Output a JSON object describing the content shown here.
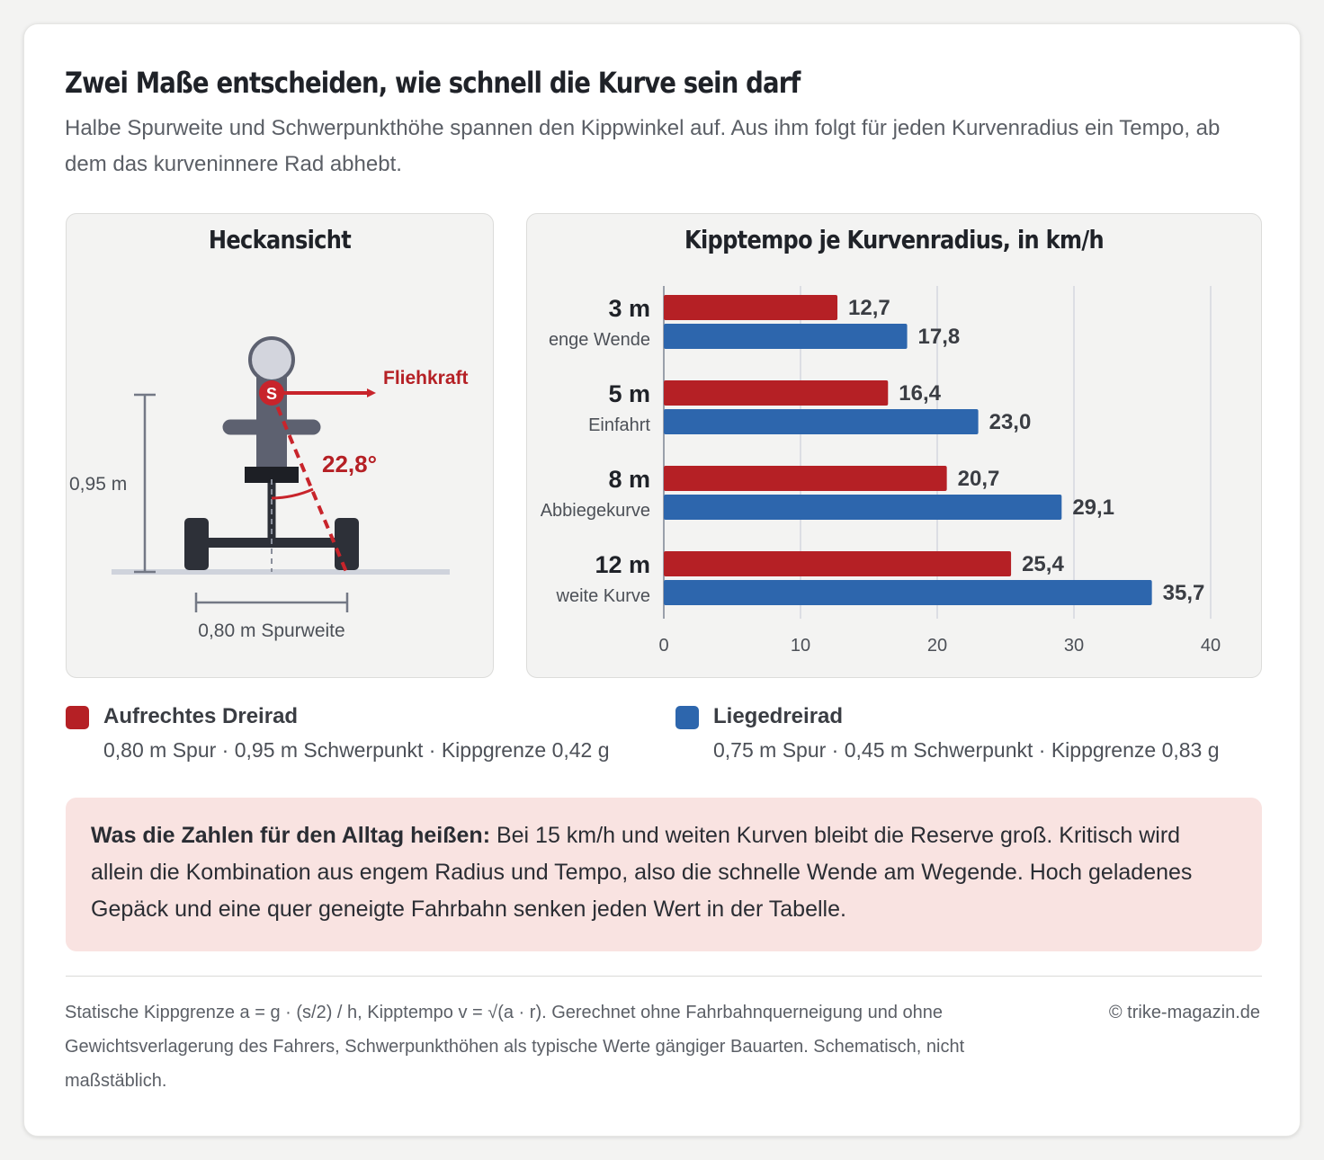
{
  "header": {
    "title": "Zwei Maße entscheiden, wie schnell die Kurve sein darf",
    "subtitle": "Halbe Spurweite und Schwerpunkthöhe spannen den Kippwinkel auf. Aus ihm folgt für jeden Kurvenradius ein Tempo, ab dem das kurveninnere Rad abhebt."
  },
  "diagram": {
    "title": "Heckansicht",
    "force_label": "Fliehkraft",
    "cg_marker": "S",
    "angle_label": "22,8°",
    "height_label": "0,95 m",
    "track_label": "0,80 m Spurweite"
  },
  "colors": {
    "upright": "#b52025",
    "recumbent": "#2d66ad",
    "rider": "#5d6170",
    "head": "#d3d5dd",
    "wheel": "#2d3038",
    "ground": "#cfd3dc",
    "dimension": "#737885"
  },
  "chart_data": {
    "type": "bar",
    "orientation": "horizontal",
    "title": "Kipptempo je Kurvenradius, in km/h",
    "categories": [
      "3 m",
      "5 m",
      "8 m",
      "12 m"
    ],
    "category_sublabels": [
      "enge Wende",
      "Einfahrt",
      "Abbiegekurve",
      "weite Kurve"
    ],
    "series": [
      {
        "name": "Aufrechtes Dreirad",
        "values": [
          12.7,
          16.4,
          20.7,
          25.4
        ],
        "labels": [
          "12,7",
          "16,4",
          "20,7",
          "25,4"
        ]
      },
      {
        "name": "Liegedreirad",
        "values": [
          17.8,
          23.0,
          29.1,
          35.7
        ],
        "labels": [
          "17,8",
          "23,0",
          "29,1",
          "35,7"
        ]
      }
    ],
    "xlim": [
      0,
      40
    ],
    "xticks": [
      0,
      10,
      20,
      30,
      40
    ],
    "grid": true
  },
  "legend": [
    {
      "name": "Aufrechtes Dreirad",
      "desc": "0,80 m Spur · 0,95 m Schwerpunkt · Kippgrenze 0,42 g"
    },
    {
      "name": "Liegedreirad",
      "desc": "0,75 m Spur · 0,45 m Schwerpunkt · Kippgrenze 0,83 g"
    }
  ],
  "note": {
    "lead": "Was die Zahlen für den Alltag heißen:",
    "text": " Bei 15 km/h und weiten Kurven bleibt die Reserve groß. Kritisch wird allein die Kombination aus engem Radius und Tempo, also die schnelle Wende am Wegende. Hoch geladenes Gepäck und eine quer geneigte Fahrbahn senken jeden Wert in der Tabelle."
  },
  "footer": {
    "footnote": "Statische Kippgrenze a = g · (s/2) / h, Kipptempo v = √(a · r). Gerechnet ohne Fahrbahnquerneigung und ohne Gewichtsverlagerung des Fahrers, Schwerpunkthöhen als typische Werte gängiger Bauarten. Schematisch, nicht maßstäblich.",
    "copyright": "© trike-magazin.de"
  }
}
